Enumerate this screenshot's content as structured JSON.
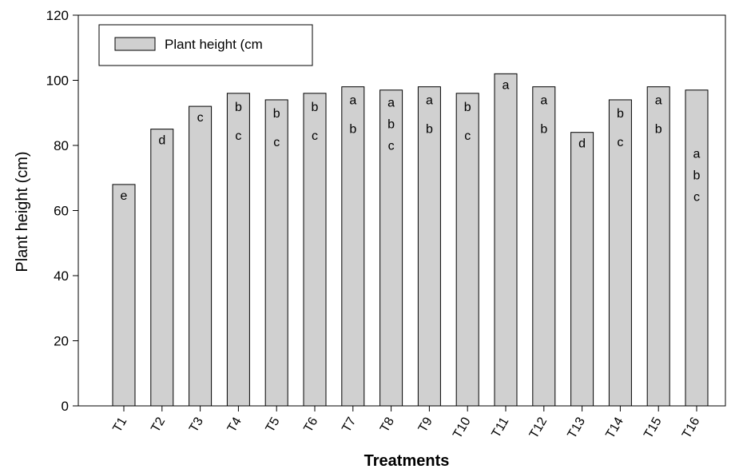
{
  "chart_data": {
    "type": "bar",
    "xlabel": "Treatments",
    "ylabel": "Plant height (cm)",
    "ylim": [
      0,
      120
    ],
    "yticks": [
      0,
      20,
      40,
      60,
      80,
      100,
      120
    ],
    "grid": false,
    "legend": {
      "placement": "top-left",
      "label": "Plant height (cm",
      "swatch_color": "#d0d0d0"
    },
    "bar_color": "#d0d0d0",
    "categories": [
      "T1",
      "T2",
      "T3",
      "T4",
      "T5",
      "T6",
      "T7",
      "T8",
      "T9",
      "T10",
      "T11",
      "T12",
      "T13",
      "T14",
      "T15",
      "T16"
    ],
    "series": [
      {
        "values": [
          68,
          85,
          92,
          96,
          94,
          96,
          98,
          97,
          98,
          96,
          102,
          98,
          84,
          94,
          98,
          97
        ]
      }
    ],
    "significance_letters": [
      [
        "e"
      ],
      [
        "d"
      ],
      [
        "c"
      ],
      [
        "b",
        "c"
      ],
      [
        "b",
        "c"
      ],
      [
        "b",
        "c"
      ],
      [
        "a",
        "b"
      ],
      [
        "a",
        "b",
        "c"
      ],
      [
        "a",
        "b"
      ],
      [
        "b",
        "c"
      ],
      [
        "a"
      ],
      [
        "a",
        "b"
      ],
      [
        "d"
      ],
      [
        "b",
        "c"
      ],
      [
        "a",
        "b"
      ],
      [
        "a",
        "b",
        "c"
      ]
    ]
  }
}
